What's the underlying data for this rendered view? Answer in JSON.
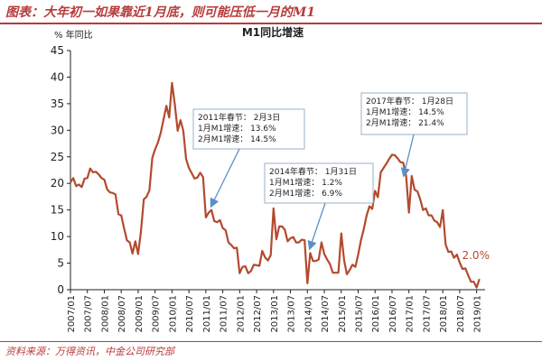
{
  "header": {
    "title": "图表：大年初一如果靠近1月底，则可能压低一月的M1"
  },
  "footer": {
    "source": "资料来源：万得资讯，中金公司研究部"
  },
  "chart_data": {
    "type": "line",
    "title": "M1同比增速",
    "ylabel": "% 年同比",
    "ylim": [
      0,
      45
    ],
    "yticks": [
      "0",
      "5",
      "10",
      "15",
      "20",
      "25",
      "30",
      "35",
      "40",
      "45"
    ],
    "xlim": [
      2007.0,
      2019.25
    ],
    "x_tick_labels": [
      "2007/01",
      "2007/07",
      "2008/01",
      "2008/07",
      "2009/01",
      "2009/07",
      "2010/01",
      "2010/07",
      "2011/01",
      "2011/07",
      "2012/01",
      "2012/07",
      "2013/01",
      "2013/07",
      "2014/01",
      "2014/07",
      "2015/01",
      "2015/07",
      "2016/01",
      "2016/07",
      "2017/01",
      "2017/07",
      "2018/01",
      "2018/07",
      "2019/01"
    ],
    "grid": false,
    "line_color": "#b34a2e",
    "series": [
      {
        "name": "",
        "x": [
          2007.0,
          2007.083,
          2007.167,
          2007.25,
          2007.333,
          2007.417,
          2007.5,
          2007.583,
          2007.667,
          2007.75,
          2007.833,
          2007.917,
          2008.0,
          2008.083,
          2008.167,
          2008.25,
          2008.333,
          2008.417,
          2008.5,
          2008.583,
          2008.667,
          2008.75,
          2008.833,
          2008.917,
          2009.0,
          2009.083,
          2009.167,
          2009.25,
          2009.333,
          2009.417,
          2009.5,
          2009.583,
          2009.667,
          2009.75,
          2009.833,
          2009.917,
          2010.0,
          2010.083,
          2010.167,
          2010.25,
          2010.333,
          2010.417,
          2010.5,
          2010.583,
          2010.667,
          2010.75,
          2010.833,
          2010.917,
          2011.0,
          2011.083,
          2011.167,
          2011.25,
          2011.333,
          2011.417,
          2011.5,
          2011.583,
          2011.667,
          2011.75,
          2011.833,
          2011.917,
          2012.0,
          2012.083,
          2012.167,
          2012.25,
          2012.333,
          2012.417,
          2012.5,
          2012.583,
          2012.667,
          2012.75,
          2012.833,
          2012.917,
          2013.0,
          2013.083,
          2013.167,
          2013.25,
          2013.333,
          2013.417,
          2013.5,
          2013.583,
          2013.667,
          2013.75,
          2013.833,
          2013.917,
          2014.0,
          2014.083,
          2014.167,
          2014.25,
          2014.333,
          2014.417,
          2014.5,
          2014.583,
          2014.667,
          2014.75,
          2014.833,
          2014.917,
          2015.0,
          2015.083,
          2015.167,
          2015.25,
          2015.333,
          2015.417,
          2015.5,
          2015.583,
          2015.667,
          2015.75,
          2015.833,
          2015.917,
          2016.0,
          2016.083,
          2016.167,
          2016.25,
          2016.333,
          2016.417,
          2016.5,
          2016.583,
          2016.667,
          2016.75,
          2016.833,
          2016.917,
          2017.0,
          2017.083,
          2017.167,
          2017.25,
          2017.333,
          2017.417,
          2017.5,
          2017.583,
          2017.667,
          2017.75,
          2017.833,
          2017.917,
          2018.0,
          2018.083,
          2018.167,
          2018.25,
          2018.333,
          2018.417,
          2018.5,
          2018.583,
          2018.667,
          2018.75,
          2018.833,
          2018.917,
          2019.0,
          2019.083
        ],
        "y": [
          20.2,
          21.0,
          19.5,
          19.8,
          19.3,
          20.9,
          21.0,
          22.8,
          22.1,
          22.2,
          21.7,
          21.0,
          20.7,
          18.9,
          18.3,
          18.2,
          17.9,
          14.2,
          14.0,
          11.6,
          9.3,
          8.9,
          6.8,
          9.1,
          6.7,
          10.9,
          17.0,
          17.5,
          18.7,
          24.8,
          26.4,
          27.7,
          29.5,
          32.0,
          34.6,
          32.4,
          38.9,
          34.9,
          29.9,
          31.9,
          29.9,
          24.6,
          22.9,
          21.9,
          20.9,
          21.1,
          22.0,
          21.2,
          13.6,
          14.5,
          15.0,
          12.9,
          12.7,
          13.1,
          11.6,
          11.2,
          8.9,
          8.4,
          7.8,
          7.9,
          3.1,
          4.3,
          4.4,
          3.1,
          3.5,
          4.7,
          4.6,
          4.5,
          7.3,
          6.1,
          5.5,
          6.5,
          15.3,
          9.5,
          11.9,
          11.9,
          11.3,
          9.1,
          9.7,
          9.9,
          8.9,
          8.9,
          9.4,
          9.3,
          1.2,
          6.9,
          5.4,
          5.4,
          5.7,
          8.9,
          6.7,
          5.7,
          4.8,
          3.2,
          3.2,
          3.2,
          10.6,
          5.6,
          2.9,
          3.7,
          4.7,
          4.3,
          6.6,
          9.3,
          11.4,
          14.0,
          15.7,
          15.2,
          18.6,
          17.4,
          22.1,
          22.9,
          23.7,
          24.6,
          25.4,
          25.3,
          24.7,
          24.0,
          23.9,
          21.4,
          14.5,
          21.4,
          18.8,
          18.5,
          17.0,
          15.0,
          15.3,
          14.0,
          14.0,
          13.0,
          12.7,
          11.8,
          15.0,
          8.5,
          7.1,
          7.2,
          6.0,
          6.6,
          5.1,
          3.9,
          4.0,
          2.7,
          1.5,
          1.5,
          0.4,
          2.0
        ]
      }
    ],
    "annotations": [
      {
        "lines": [
          "2011年春节：  2月3日",
          "1月M1增速：    13.6%",
          "2月M1增速：    14.5%"
        ]
      },
      {
        "lines": [
          "2014年春节：  1月31日",
          "1月M1增速：    1.2%",
          "2月M1增速：    6.9%"
        ]
      },
      {
        "lines": [
          "2017年春节：  1月28日",
          "1月M1增速：    14.5%",
          "2月M1增速：    21.4%"
        ]
      }
    ],
    "end_label": "2.0%"
  }
}
